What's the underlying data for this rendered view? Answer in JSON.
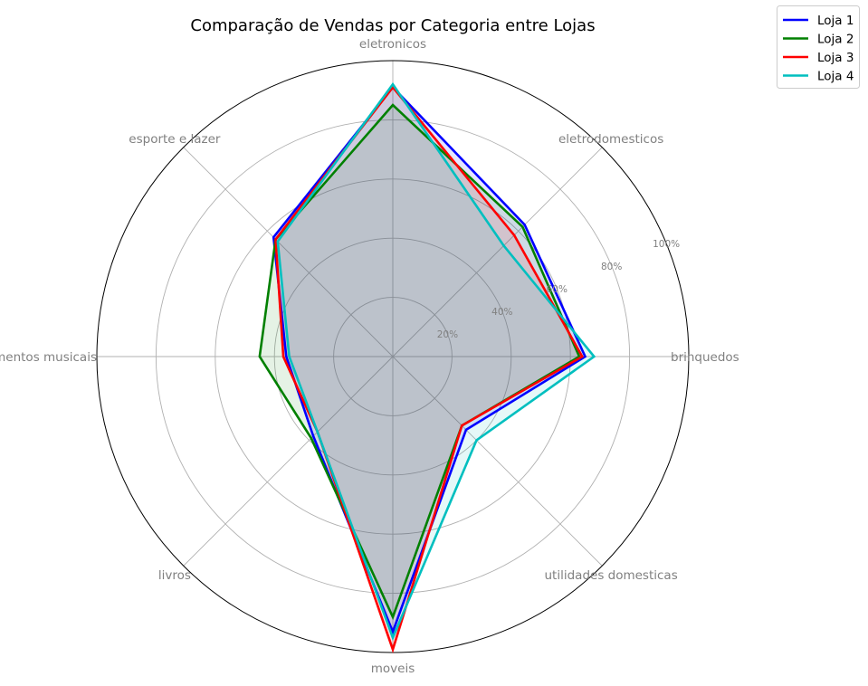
{
  "chart_data": {
    "type": "radar",
    "title": "Comparação de Vendas por Categoria entre Lojas",
    "categories": [
      "brinquedos",
      "eletrodomesticos",
      "eletronicos",
      "esporte e lazer",
      "instrumentos musicais",
      "livros",
      "moveis",
      "utilidades domesticas"
    ],
    "rlim": [
      0,
      100
    ],
    "rticks": [
      20,
      40,
      60,
      80,
      100
    ],
    "rtick_labels": [
      "20%",
      "40%",
      "60%",
      "80%",
      "100%"
    ],
    "grid": true,
    "legend_position": "top-right",
    "series": [
      {
        "name": "Loja 1",
        "color": "#0000ff",
        "values": [
          65,
          63,
          91,
          57,
          36,
          38,
          93,
          35
        ]
      },
      {
        "name": "Loja 2",
        "color": "#008000",
        "values": [
          63,
          62,
          85,
          56,
          45,
          39,
          88,
          33
        ]
      },
      {
        "name": "Loja 3",
        "color": "#ff0000",
        "values": [
          64,
          58,
          91,
          56,
          37,
          36,
          99,
          33
        ]
      },
      {
        "name": "Loja 4",
        "color": "#00bfbf",
        "values": [
          68,
          53,
          92,
          55,
          35,
          36,
          95,
          40
        ]
      }
    ]
  }
}
